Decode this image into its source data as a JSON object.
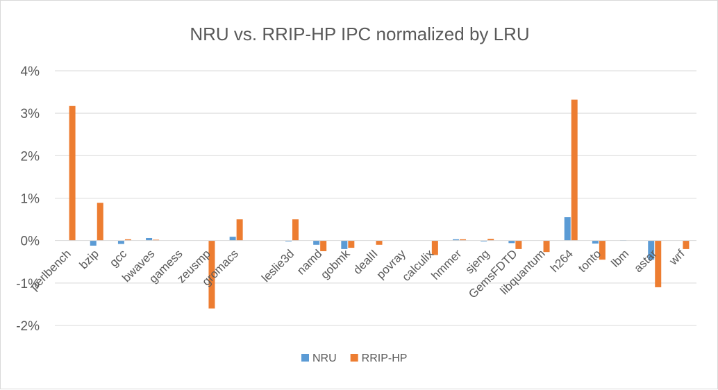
{
  "chart_data": {
    "type": "bar",
    "title": "NRU vs. RRIP-HP IPC normalized by LRU",
    "categories": [
      "perlbench",
      "bzip",
      "gcc",
      "bwaves",
      "gamess",
      "zeusmp",
      "gromacs",
      "",
      "leslie3d",
      "namd",
      "gobmk",
      "dealII",
      "povray",
      "calculix",
      "hmmer",
      "sjeng",
      "GemsFDTD",
      "libquantum",
      "h264",
      "tonto",
      "lbm",
      "astar",
      "wrf"
    ],
    "series": [
      {
        "name": "NRU",
        "color": "#5b9bd5",
        "values": [
          0.0,
          -0.12,
          -0.08,
          0.06,
          0.0,
          0.0,
          0.09,
          0.0,
          -0.02,
          -0.1,
          -0.2,
          0.0,
          0.0,
          0.0,
          0.03,
          -0.02,
          -0.06,
          0.0,
          0.55,
          -0.07,
          0.01,
          -0.45,
          0.0
        ]
      },
      {
        "name": "RRIP-HP",
        "color": "#ed7d31",
        "values": [
          3.17,
          0.89,
          0.03,
          0.02,
          0.0,
          -1.6,
          0.5,
          0.0,
          0.5,
          -0.25,
          -0.17,
          -0.1,
          0.0,
          -0.34,
          0.03,
          0.04,
          -0.2,
          -0.27,
          3.32,
          -0.45,
          0.0,
          -1.1,
          -0.2
        ]
      }
    ],
    "y_ticks": [
      "4%",
      "3%",
      "2%",
      "1%",
      "0%",
      "-1%",
      "-2%"
    ],
    "ylim": [
      -2,
      4
    ],
    "grid": true,
    "legend_position": "bottom"
  }
}
